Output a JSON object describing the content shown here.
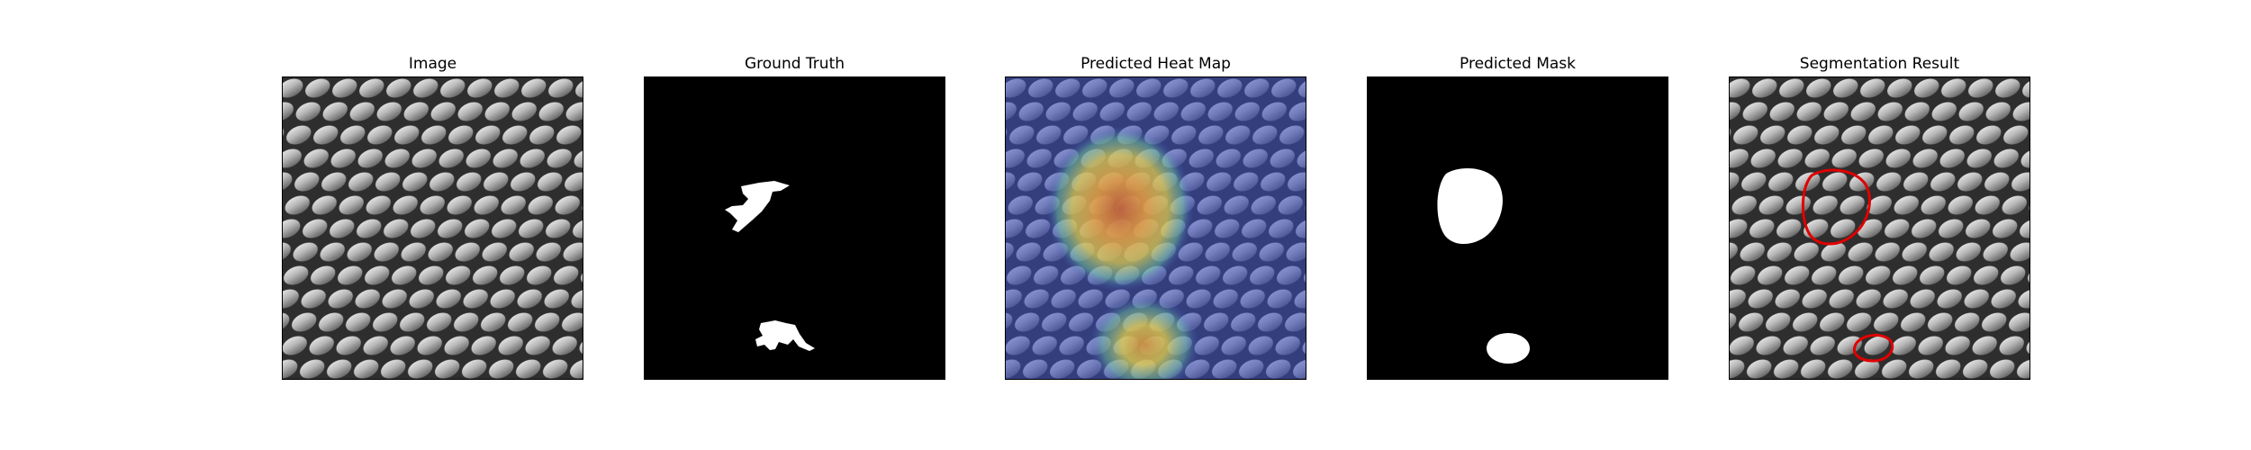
{
  "panels": [
    {
      "title": "Image"
    },
    {
      "title": "Ground Truth"
    },
    {
      "title": "Predicted Heat Map"
    },
    {
      "title": "Predicted Mask"
    },
    {
      "title": "Segmentation Result"
    }
  ],
  "colors": {
    "background": "#ffffff",
    "mask_fg": "#ffffff",
    "mask_bg": "#000000",
    "contour": "#e00000",
    "heat_low": "#3b4cc0",
    "heat_mid": "#e8d34a",
    "heat_high": "#c0603a"
  }
}
